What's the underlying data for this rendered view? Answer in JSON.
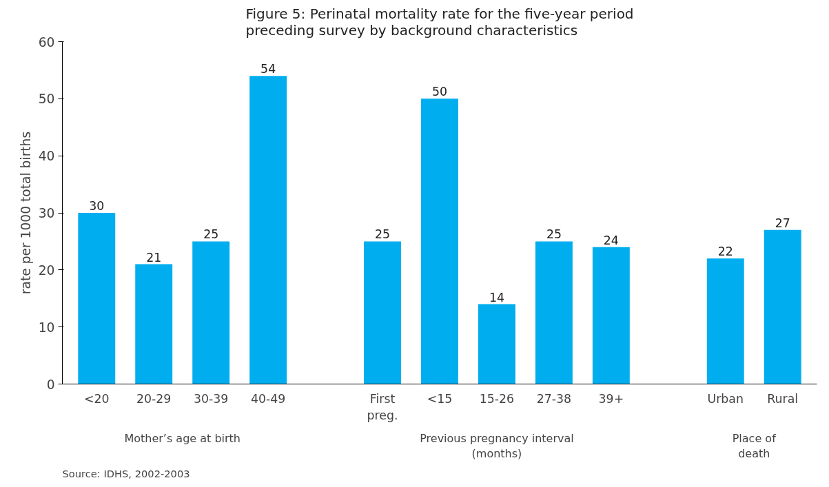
{
  "chart_data": {
    "type": "bar",
    "title": "Figure 5: Perinatal mortality rate for the five-year period preceding survey by background characteristics",
    "ylabel": "rate per 1000 total births",
    "categories": [
      "<20",
      "20-29",
      "30-39",
      "40-49",
      null,
      "First preg.",
      "<15",
      "15-26",
      "27-38",
      "39+",
      null,
      "Urban",
      "Rural"
    ],
    "values": [
      30,
      21,
      25,
      54,
      null,
      25,
      50,
      14,
      25,
      24,
      null,
      22,
      27
    ],
    "color": "#00aeef",
    "ylim": [
      0,
      60
    ],
    "yticks": [
      0,
      10,
      20,
      30,
      40,
      50,
      60
    ],
    "grid": false,
    "data_labels": true,
    "annotations": [
      "Mother’s age at birth",
      "Previous pregnancy interval (months)",
      "Place of death",
      "Source: IDHS, 2002-2003"
    ]
  }
}
